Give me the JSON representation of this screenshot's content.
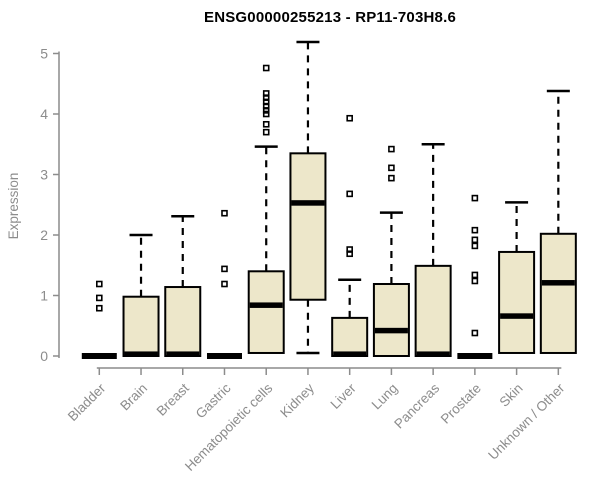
{
  "chart_data": {
    "type": "boxplot",
    "title": "ENSG00000255213 - RP11-703H8.6",
    "ylabel": "Expression",
    "xlabel": "",
    "ylim": [
      0,
      5.2
    ],
    "yticks": [
      0,
      1,
      2,
      3,
      4,
      5
    ],
    "grid": false,
    "legend_position": "none",
    "colors": {
      "box_fill": "#EDE7CA",
      "box_border": "#000000",
      "median": "#000000",
      "whisker": "#000000",
      "axis": "#8c8c8c",
      "title": "#000000"
    },
    "categories": [
      "Bladder",
      "Brain",
      "Breast",
      "Gastric",
      "Hematopoietic cells",
      "Kidney",
      "Liver",
      "Lung",
      "Pancreas",
      "Prostate",
      "Skin",
      "Unknown / Other"
    ],
    "boxes": [
      {
        "category": "Bladder",
        "low": 0,
        "q1": 0,
        "median": 0,
        "q3": 0,
        "high": 0,
        "outliers": [
          0.79,
          0.96,
          1.19
        ]
      },
      {
        "category": "Brain",
        "low": 0,
        "q1": 0,
        "median": 0.03,
        "q3": 0.98,
        "high": 2.0,
        "outliers": []
      },
      {
        "category": "Breast",
        "low": 0,
        "q1": 0,
        "median": 0.03,
        "q3": 1.14,
        "high": 2.31,
        "outliers": []
      },
      {
        "category": "Gastric",
        "low": 0,
        "q1": 0,
        "median": 0,
        "q3": 0,
        "high": 0,
        "outliers": [
          1.19,
          1.44,
          2.36
        ]
      },
      {
        "category": "Hematopoietic cells",
        "low": 0.05,
        "q1": 0.05,
        "median": 0.84,
        "q3": 1.4,
        "high": 3.46,
        "outliers": [
          3.7,
          3.83,
          4.0,
          4.06,
          4.13,
          4.2,
          4.27,
          4.34,
          4.76
        ]
      },
      {
        "category": "Kidney",
        "low": 0.05,
        "q1": 0.93,
        "median": 2.53,
        "q3": 3.35,
        "high": 5.19,
        "outliers": []
      },
      {
        "category": "Liver",
        "low": 0,
        "q1": 0,
        "median": 0.03,
        "q3": 0.63,
        "high": 1.26,
        "outliers": [
          1.69,
          1.76,
          2.68,
          3.93
        ]
      },
      {
        "category": "Lung",
        "low": 0,
        "q1": 0,
        "median": 0.42,
        "q3": 1.19,
        "high": 2.37,
        "outliers": [
          2.94,
          3.11,
          3.42
        ]
      },
      {
        "category": "Pancreas",
        "low": 0,
        "q1": 0,
        "median": 0.03,
        "q3": 1.49,
        "high": 3.5,
        "outliers": []
      },
      {
        "category": "Prostate",
        "low": 0,
        "q1": 0,
        "median": 0,
        "q3": 0,
        "high": 0,
        "outliers": [
          0.38,
          1.24,
          1.34,
          1.82,
          1.92,
          2.08,
          2.61
        ]
      },
      {
        "category": "Skin",
        "low": 0.05,
        "q1": 0.05,
        "median": 0.66,
        "q3": 1.72,
        "high": 2.54,
        "outliers": []
      },
      {
        "category": "Unknown / Other",
        "low": 0.05,
        "q1": 0.05,
        "median": 1.21,
        "q3": 2.02,
        "high": 4.38,
        "outliers": []
      }
    ]
  }
}
